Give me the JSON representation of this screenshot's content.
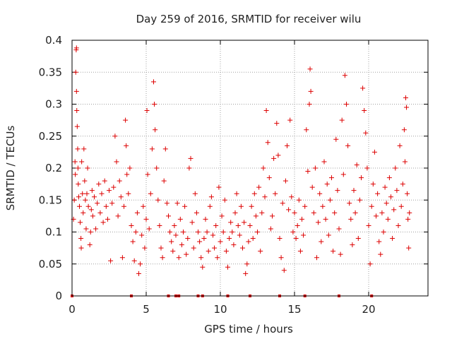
{
  "chart_data": {
    "type": "scatter",
    "title": "Day 259 of 2016, SRMTID for receiver wilu",
    "xlabel": "GPS time / hours",
    "ylabel": "SRMTID / TECUs",
    "xlim": [
      0,
      24
    ],
    "ylim": [
      0,
      0.4
    ],
    "x_ticks": [
      0,
      5,
      10,
      15,
      20
    ],
    "x_tick_labels": [
      "0",
      "5",
      "10",
      "15",
      "20"
    ],
    "y_ticks": [
      0,
      0.05,
      0.1,
      0.15,
      0.2,
      0.25,
      0.3,
      0.35,
      0.4
    ],
    "y_tick_labels": [
      "0",
      "0.05",
      "0.1",
      "0.15",
      "0.2",
      "0.25",
      "0.3",
      "0.35",
      "0.4"
    ],
    "grid": true,
    "marker": "plus",
    "color": "#dd0000",
    "series": [
      {
        "name": "SRMTID",
        "points": [
          [
            0.1,
            0.12
          ],
          [
            0.15,
            0.15
          ],
          [
            0.2,
            0.21
          ],
          [
            0.22,
            0.19
          ],
          [
            0.25,
            0.35
          ],
          [
            0.28,
            0.385
          ],
          [
            0.3,
            0.388
          ],
          [
            0.3,
            0.32
          ],
          [
            0.32,
            0.29
          ],
          [
            0.35,
            0.265
          ],
          [
            0.38,
            0.23
          ],
          [
            0.4,
            0.2
          ],
          [
            0.42,
            0.175
          ],
          [
            0.45,
            0.155
          ],
          [
            0.5,
            0.14
          ],
          [
            0.55,
            0.115
          ],
          [
            0.6,
            0.09
          ],
          [
            0.62,
            0.075
          ],
          [
            0.65,
            0.21
          ],
          [
            0.7,
            0.16
          ],
          [
            0.75,
            0.13
          ],
          [
            0.8,
            0.23
          ],
          [
            0.85,
            0.18
          ],
          [
            0.9,
            0.15
          ],
          [
            0.95,
            0.105
          ],
          [
            1.0,
            0.16
          ],
          [
            1.05,
            0.2
          ],
          [
            1.1,
            0.14
          ],
          [
            1.2,
            0.08
          ],
          [
            1.25,
            0.1
          ],
          [
            1.3,
            0.135
          ],
          [
            1.35,
            0.165
          ],
          [
            1.4,
            0.125
          ],
          [
            1.5,
            0.155
          ],
          [
            1.6,
            0.105
          ],
          [
            1.7,
            0.145
          ],
          [
            1.8,
            0.175
          ],
          [
            1.9,
            0.13
          ],
          [
            2.0,
            0.16
          ],
          [
            2.1,
            0.115
          ],
          [
            2.2,
            0.18
          ],
          [
            2.3,
            0.14
          ],
          [
            2.4,
            0.12
          ],
          [
            2.5,
            0.165
          ],
          [
            2.6,
            0.055
          ],
          [
            2.7,
            0.145
          ],
          [
            2.8,
            0.17
          ],
          [
            2.9,
            0.25
          ],
          [
            3.0,
            0.21
          ],
          [
            3.1,
            0.125
          ],
          [
            3.2,
            0.18
          ],
          [
            3.3,
            0.155
          ],
          [
            3.4,
            0.06
          ],
          [
            3.5,
            0.14
          ],
          [
            3.6,
            0.275
          ],
          [
            3.65,
            0.235
          ],
          [
            3.7,
            0.19
          ],
          [
            3.8,
            0.16
          ],
          [
            3.9,
            0.2
          ],
          [
            4.0,
            0.11
          ],
          [
            4.1,
            0.085
          ],
          [
            4.2,
            0.055
          ],
          [
            4.3,
            0.1
          ],
          [
            4.4,
            0.13
          ],
          [
            4.5,
            0.035
          ],
          [
            4.6,
            0.05
          ],
          [
            4.7,
            0.095
          ],
          [
            4.8,
            0.14
          ],
          [
            4.9,
            0.075
          ],
          [
            5.0,
            0.12
          ],
          [
            5.05,
            0.29
          ],
          [
            5.1,
            0.19
          ],
          [
            5.2,
            0.105
          ],
          [
            5.3,
            0.16
          ],
          [
            5.4,
            0.23
          ],
          [
            5.5,
            0.335
          ],
          [
            5.55,
            0.3
          ],
          [
            5.6,
            0.26
          ],
          [
            5.7,
            0.2
          ],
          [
            5.8,
            0.15
          ],
          [
            5.9,
            0.11
          ],
          [
            6.0,
            0.075
          ],
          [
            6.1,
            0.06
          ],
          [
            6.2,
            0.18
          ],
          [
            6.3,
            0.23
          ],
          [
            6.4,
            0.145
          ],
          [
            6.5,
            0.125
          ],
          [
            6.6,
            0.1
          ],
          [
            6.7,
            0.085
          ],
          [
            6.8,
            0.07
          ],
          [
            6.9,
            0.11
          ],
          [
            7.0,
            0.095
          ],
          [
            7.1,
            0.145
          ],
          [
            7.2,
            0.06
          ],
          [
            7.3,
            0.12
          ],
          [
            7.4,
            0.08
          ],
          [
            7.5,
            0.1
          ],
          [
            7.6,
            0.14
          ],
          [
            7.7,
            0.065
          ],
          [
            7.8,
            0.09
          ],
          [
            7.9,
            0.2
          ],
          [
            8.0,
            0.215
          ],
          [
            8.1,
            0.115
          ],
          [
            8.2,
            0.075
          ],
          [
            8.3,
            0.16
          ],
          [
            8.4,
            0.13
          ],
          [
            8.5,
            0.1
          ],
          [
            8.6,
            0.085
          ],
          [
            8.7,
            0.06
          ],
          [
            8.8,
            0.045
          ],
          [
            8.9,
            0.09
          ],
          [
            9.0,
            0.12
          ],
          [
            9.1,
            0.1
          ],
          [
            9.2,
            0.07
          ],
          [
            9.3,
            0.14
          ],
          [
            9.4,
            0.155
          ],
          [
            9.5,
            0.095
          ],
          [
            9.6,
            0.075
          ],
          [
            9.7,
            0.11
          ],
          [
            9.8,
            0.06
          ],
          [
            9.9,
            0.17
          ],
          [
            10.0,
            0.085
          ],
          [
            10.1,
            0.125
          ],
          [
            10.2,
            0.1
          ],
          [
            10.3,
            0.15
          ],
          [
            10.4,
            0.07
          ],
          [
            10.5,
            0.045
          ],
          [
            10.6,
            0.09
          ],
          [
            10.7,
            0.115
          ],
          [
            10.8,
            0.1
          ],
          [
            10.9,
            0.08
          ],
          [
            11.0,
            0.13
          ],
          [
            11.1,
            0.16
          ],
          [
            11.2,
            0.11
          ],
          [
            11.3,
            0.095
          ],
          [
            11.4,
            0.14
          ],
          [
            11.5,
            0.075
          ],
          [
            11.6,
            0.115
          ],
          [
            11.7,
            0.035
          ],
          [
            11.8,
            0.05
          ],
          [
            11.9,
            0.085
          ],
          [
            12.0,
            0.11
          ],
          [
            12.1,
            0.14
          ],
          [
            12.2,
            0.09
          ],
          [
            12.3,
            0.16
          ],
          [
            12.4,
            0.125
          ],
          [
            12.5,
            0.1
          ],
          [
            12.6,
            0.17
          ],
          [
            12.7,
            0.07
          ],
          [
            12.8,
            0.13
          ],
          [
            12.9,
            0.2
          ],
          [
            13.0,
            0.155
          ],
          [
            13.1,
            0.29
          ],
          [
            13.2,
            0.24
          ],
          [
            13.3,
            0.185
          ],
          [
            13.4,
            0.105
          ],
          [
            13.5,
            0.125
          ],
          [
            13.6,
            0.215
          ],
          [
            13.7,
            0.16
          ],
          [
            13.8,
            0.27
          ],
          [
            13.9,
            0.22
          ],
          [
            14.0,
            0.09
          ],
          [
            14.1,
            0.06
          ],
          [
            14.2,
            0.145
          ],
          [
            14.3,
            0.04
          ],
          [
            14.4,
            0.18
          ],
          [
            14.5,
            0.235
          ],
          [
            14.6,
            0.135
          ],
          [
            14.7,
            0.275
          ],
          [
            14.8,
            0.155
          ],
          [
            14.9,
            0.1
          ],
          [
            15.0,
            0.13
          ],
          [
            15.1,
            0.09
          ],
          [
            15.2,
            0.11
          ],
          [
            15.3,
            0.15
          ],
          [
            15.4,
            0.07
          ],
          [
            15.5,
            0.12
          ],
          [
            15.6,
            0.095
          ],
          [
            15.7,
            0.14
          ],
          [
            15.8,
            0.26
          ],
          [
            15.9,
            0.195
          ],
          [
            16.0,
            0.3
          ],
          [
            16.05,
            0.355
          ],
          [
            16.1,
            0.32
          ],
          [
            16.2,
            0.17
          ],
          [
            16.3,
            0.13
          ],
          [
            16.4,
            0.2
          ],
          [
            16.5,
            0.06
          ],
          [
            16.6,
            0.115
          ],
          [
            16.7,
            0.16
          ],
          [
            16.8,
            0.085
          ],
          [
            16.9,
            0.14
          ],
          [
            17.0,
            0.21
          ],
          [
            17.1,
            0.12
          ],
          [
            17.2,
            0.175
          ],
          [
            17.3,
            0.095
          ],
          [
            17.4,
            0.15
          ],
          [
            17.5,
            0.185
          ],
          [
            17.6,
            0.07
          ],
          [
            17.7,
            0.13
          ],
          [
            17.8,
            0.245
          ],
          [
            17.9,
            0.165
          ],
          [
            18.0,
            0.105
          ],
          [
            18.1,
            0.065
          ],
          [
            18.2,
            0.275
          ],
          [
            18.3,
            0.19
          ],
          [
            18.4,
            0.345
          ],
          [
            18.5,
            0.3
          ],
          [
            18.6,
            0.235
          ],
          [
            18.7,
            0.145
          ],
          [
            18.8,
            0.12
          ],
          [
            18.9,
            0.08
          ],
          [
            19.0,
            0.165
          ],
          [
            19.1,
            0.13
          ],
          [
            19.2,
            0.205
          ],
          [
            19.3,
            0.09
          ],
          [
            19.4,
            0.15
          ],
          [
            19.5,
            0.185
          ],
          [
            19.6,
            0.325
          ],
          [
            19.7,
            0.29
          ],
          [
            19.8,
            0.255
          ],
          [
            19.9,
            0.2
          ],
          [
            20.0,
            0.11
          ],
          [
            20.1,
            0.05
          ],
          [
            20.2,
            0.14
          ],
          [
            20.3,
            0.175
          ],
          [
            20.4,
            0.225
          ],
          [
            20.5,
            0.125
          ],
          [
            20.6,
            0.16
          ],
          [
            20.7,
            0.085
          ],
          [
            20.8,
            0.065
          ],
          [
            20.9,
            0.13
          ],
          [
            21.0,
            0.1
          ],
          [
            21.1,
            0.17
          ],
          [
            21.2,
            0.145
          ],
          [
            21.3,
            0.12
          ],
          [
            21.4,
            0.185
          ],
          [
            21.5,
            0.155
          ],
          [
            21.6,
            0.09
          ],
          [
            21.7,
            0.135
          ],
          [
            21.8,
            0.2
          ],
          [
            21.9,
            0.165
          ],
          [
            22.0,
            0.11
          ],
          [
            22.1,
            0.235
          ],
          [
            22.2,
            0.14
          ],
          [
            22.3,
            0.175
          ],
          [
            22.4,
            0.26
          ],
          [
            22.45,
            0.21
          ],
          [
            22.5,
            0.31
          ],
          [
            22.55,
            0.295
          ],
          [
            22.6,
            0.16
          ],
          [
            22.65,
            0.12
          ],
          [
            22.7,
            0.075
          ],
          [
            22.75,
            0.13
          ]
        ]
      }
    ],
    "axis_markers_x": [
      0,
      4,
      6.5,
      7,
      7.2,
      8.5,
      8.8,
      10.5,
      12,
      14,
      15.7,
      18,
      20.2
    ]
  }
}
